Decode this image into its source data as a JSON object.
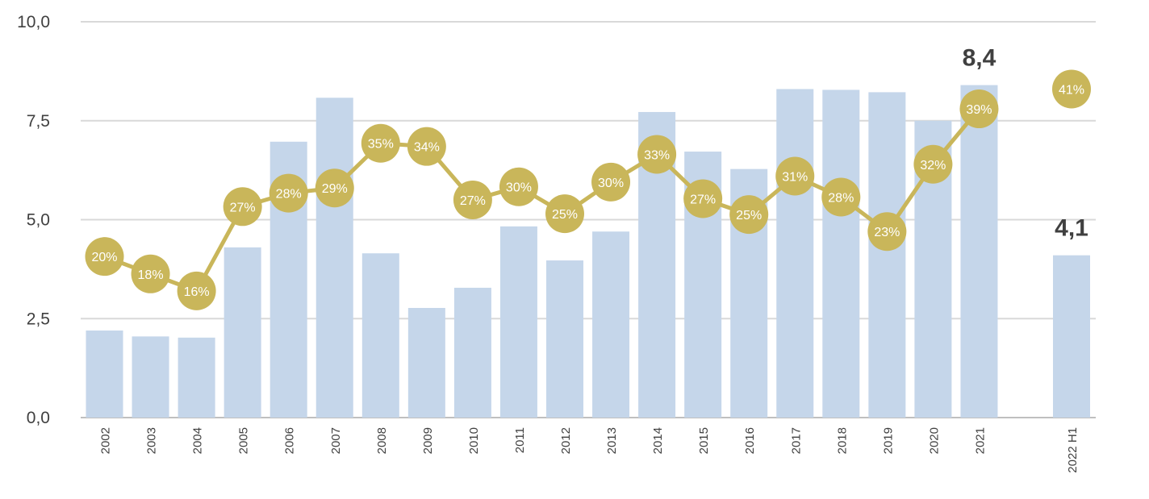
{
  "chart_data": {
    "type": "bar",
    "categories": [
      "2002",
      "2003",
      "2004",
      "2005",
      "2006",
      "2007",
      "2008",
      "2009",
      "2010",
      "2011",
      "2012",
      "2013",
      "2014",
      "2015",
      "2016",
      "2017",
      "2018",
      "2019",
      "2020",
      "2021",
      "2022 H1"
    ],
    "ylim": [
      0,
      10
    ],
    "yticks": [
      "0,0",
      "2,5",
      "5,0",
      "7,5",
      "10,0"
    ],
    "grid": true,
    "series": [
      {
        "type": "bar",
        "color": "#c5d6ea",
        "values": [
          2.2,
          2.05,
          2.02,
          4.3,
          6.97,
          8.08,
          4.15,
          2.77,
          3.28,
          4.83,
          3.97,
          4.7,
          7.72,
          6.72,
          6.28,
          8.3,
          8.28,
          8.22,
          7.5,
          8.4,
          4.1
        ]
      },
      {
        "type": "line",
        "color": "#c9b65a",
        "values": [
          4.07,
          3.63,
          3.2,
          5.33,
          5.67,
          5.8,
          6.93,
          6.85,
          5.5,
          5.83,
          5.15,
          5.95,
          6.65,
          5.53,
          5.13,
          6.1,
          5.57,
          4.7,
          6.4,
          7.8,
          null
        ],
        "labels": [
          "20%",
          "18%",
          "16%",
          "27%",
          "28%",
          "29%",
          "35%",
          "34%",
          "27%",
          "30%",
          "25%",
          "30%",
          "33%",
          "27%",
          "25%",
          "31%",
          "28%",
          "23%",
          "32%",
          "39%",
          null
        ]
      }
    ],
    "extra_point": {
      "category": "2022 H1",
      "value": 8.3,
      "label": "41%"
    },
    "callouts": [
      {
        "category": "2021",
        "text": "8,4"
      },
      {
        "category": "2022 H1",
        "text": "4,1"
      }
    ]
  }
}
